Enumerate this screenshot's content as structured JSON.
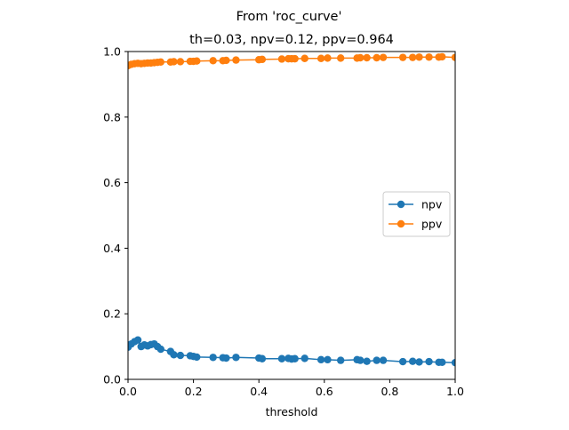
{
  "figure": {
    "suptitle": "From 'roc_curve'"
  },
  "chart_data": {
    "type": "line",
    "title": "th=0.03, npv=0.12, ppv=0.964",
    "xlabel": "threshold",
    "ylabel": "",
    "xlim": [
      0.0,
      1.0
    ],
    "ylim": [
      0.0,
      1.0
    ],
    "xticks": [
      "0.0",
      "0.2",
      "0.4",
      "0.6",
      "0.8",
      "1.0"
    ],
    "yticks": [
      "0.0",
      "0.2",
      "0.4",
      "0.6",
      "0.8",
      "1.0"
    ],
    "grid": false,
    "legend_position": "center-right",
    "series": [
      {
        "name": "npv",
        "color": "#1f77b4",
        "marker": "circle",
        "x": [
          0.0,
          0.01,
          0.02,
          0.03,
          0.04,
          0.05,
          0.06,
          0.07,
          0.08,
          0.09,
          0.1,
          0.13,
          0.14,
          0.16,
          0.19,
          0.2,
          0.21,
          0.26,
          0.29,
          0.3,
          0.33,
          0.4,
          0.41,
          0.47,
          0.49,
          0.5,
          0.51,
          0.54,
          0.59,
          0.61,
          0.65,
          0.7,
          0.71,
          0.73,
          0.76,
          0.78,
          0.84,
          0.87,
          0.89,
          0.92,
          0.95,
          0.96,
          1.0
        ],
        "y": [
          0.098,
          0.108,
          0.115,
          0.12,
          0.1,
          0.105,
          0.102,
          0.106,
          0.108,
          0.1,
          0.092,
          0.085,
          0.075,
          0.073,
          0.072,
          0.07,
          0.068,
          0.067,
          0.066,
          0.065,
          0.067,
          0.065,
          0.063,
          0.063,
          0.064,
          0.062,
          0.063,
          0.064,
          0.06,
          0.06,
          0.058,
          0.06,
          0.058,
          0.055,
          0.058,
          0.058,
          0.054,
          0.055,
          0.053,
          0.054,
          0.052,
          0.052,
          0.051
        ]
      },
      {
        "name": "ppv",
        "color": "#ff7f0e",
        "marker": "circle",
        "x": [
          0.0,
          0.01,
          0.02,
          0.03,
          0.04,
          0.05,
          0.06,
          0.07,
          0.08,
          0.09,
          0.1,
          0.13,
          0.14,
          0.16,
          0.19,
          0.2,
          0.21,
          0.26,
          0.29,
          0.3,
          0.33,
          0.4,
          0.41,
          0.47,
          0.49,
          0.5,
          0.51,
          0.54,
          0.59,
          0.61,
          0.65,
          0.7,
          0.71,
          0.73,
          0.76,
          0.78,
          0.84,
          0.87,
          0.89,
          0.92,
          0.95,
          0.96,
          1.0
        ],
        "y": [
          0.957,
          0.961,
          0.963,
          0.964,
          0.963,
          0.964,
          0.965,
          0.965,
          0.966,
          0.967,
          0.968,
          0.968,
          0.969,
          0.969,
          0.97,
          0.97,
          0.971,
          0.972,
          0.972,
          0.973,
          0.974,
          0.975,
          0.976,
          0.977,
          0.978,
          0.978,
          0.978,
          0.979,
          0.979,
          0.98,
          0.98,
          0.98,
          0.981,
          0.981,
          0.981,
          0.982,
          0.982,
          0.982,
          0.983,
          0.983,
          0.983,
          0.984,
          0.982
        ]
      }
    ]
  }
}
